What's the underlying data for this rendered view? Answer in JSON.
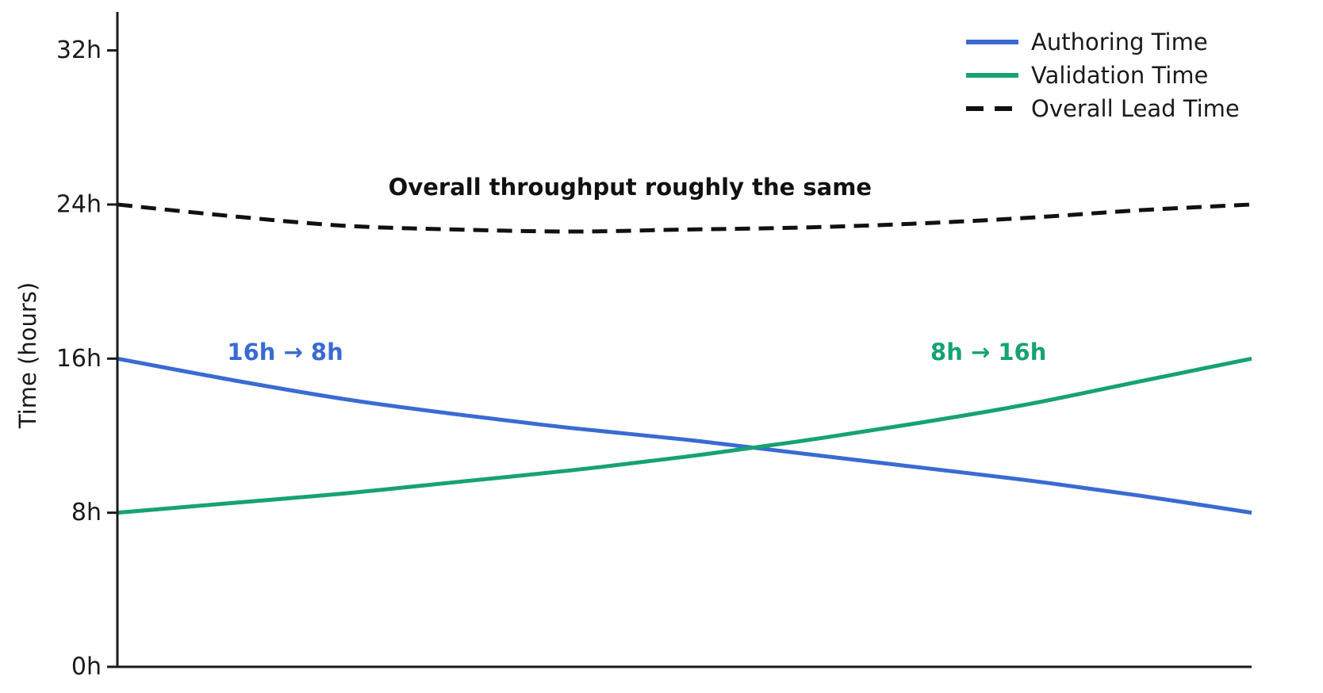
{
  "chart_data": {
    "type": "line",
    "title": "",
    "xlabel": "",
    "ylabel": "Time (hours)",
    "ylim": [
      0,
      34
    ],
    "xlim": [
      0,
      1
    ],
    "grid": false,
    "legend_position": "top-right",
    "axis_color": "#1a1a1a",
    "background_color": "#ffffff",
    "yticks": [
      {
        "value": 0,
        "label": "0h"
      },
      {
        "value": 8,
        "label": "8h"
      },
      {
        "value": 16,
        "label": "16h"
      },
      {
        "value": 24,
        "label": "24h"
      },
      {
        "value": 32,
        "label": "32h"
      }
    ],
    "x": [
      0,
      0.1,
      0.2,
      0.3,
      0.4,
      0.5,
      0.6,
      0.7,
      0.8,
      0.9,
      1.0
    ],
    "series": [
      {
        "name": "Authoring Time",
        "color": "#3a6bd2",
        "style": "solid",
        "start_value_hours": 16,
        "end_value_hours": 8,
        "values": [
          16.0,
          14.9,
          13.9,
          13.1,
          12.4,
          11.8,
          11.1,
          10.4,
          9.7,
          8.9,
          8.0
        ]
      },
      {
        "name": "Validation Time",
        "color": "#17a273",
        "style": "solid",
        "start_value_hours": 8,
        "end_value_hours": 16,
        "values": [
          8.0,
          8.5,
          9.0,
          9.6,
          10.2,
          10.9,
          11.7,
          12.6,
          13.6,
          14.8,
          16.0
        ]
      },
      {
        "name": "Overall Lead Time",
        "color": "#111111",
        "style": "dashed",
        "start_value_hours": 24,
        "end_value_hours": 24,
        "values": [
          24.0,
          23.4,
          22.9,
          22.7,
          22.6,
          22.7,
          22.8,
          23.0,
          23.3,
          23.7,
          24.0
        ]
      }
    ],
    "annotations": [
      {
        "text": "Overall throughput roughly the same",
        "color": "#111111",
        "bold": true,
        "x": 0.452,
        "y": 24.9
      },
      {
        "text": "16h → 8h",
        "color": "#3a6bd2",
        "bold": true,
        "x": 0.148,
        "y": 16.35
      },
      {
        "text": "8h → 16h",
        "color": "#17a273",
        "bold": true,
        "x": 0.768,
        "y": 16.35
      }
    ]
  }
}
